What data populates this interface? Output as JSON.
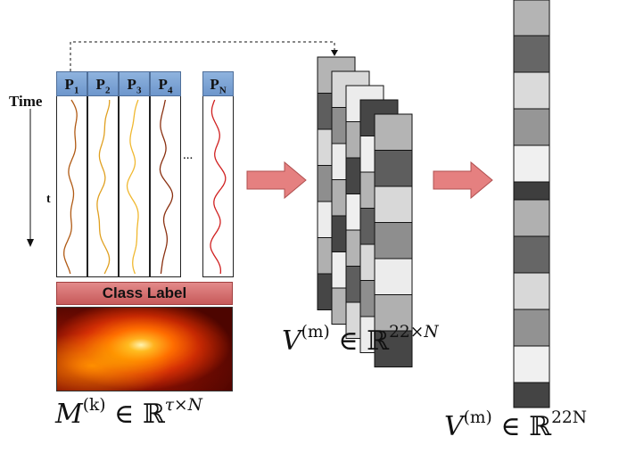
{
  "time_label": "Time",
  "t_label": "t",
  "ellipsis": "...",
  "parameters": [
    {
      "name": "P",
      "sub": "1",
      "color": "#b05a14"
    },
    {
      "name": "P",
      "sub": "2",
      "color": "#e0a020"
    },
    {
      "name": "P",
      "sub": "3",
      "color": "#f0b830"
    },
    {
      "name": "P",
      "sub": "4",
      "color": "#8a3010"
    },
    {
      "name": "P",
      "sub": "N",
      "color": "#d02020"
    }
  ],
  "class_label": "Class Label",
  "matrix_M": {
    "symbol": "M",
    "sup": "(k)",
    "in": "∈",
    "field": "ℝ",
    "dim_a": "τ",
    "dim_op": "×",
    "dim_b": "N"
  },
  "matrix_V": {
    "symbol": "V",
    "sup": "(m)",
    "in": "∈",
    "field": "ℝ",
    "dim_a": "22",
    "dim_op": "×",
    "dim_b": "N"
  },
  "vector_V": {
    "symbol": "V",
    "sup": "(m)",
    "in": "∈",
    "field": "ℝ",
    "dim": "22N"
  },
  "stack_shades": [
    "#b4b4b4",
    "#5e5e5e",
    "#d8d8d8",
    "#8e8e8e",
    "#ececec",
    "#b0b0b0",
    "#464646",
    "#efefef"
  ],
  "vector_shades": [
    "#b4b4b4",
    "#666666",
    "#dadada",
    "#969696",
    "#f0f0f0",
    "#3e3e3e",
    "#b0b0b0",
    "#666666",
    "#d8d8d8",
    "#929292",
    "#f0f0f0",
    "#444444"
  ],
  "arrow_color": "#e58080"
}
